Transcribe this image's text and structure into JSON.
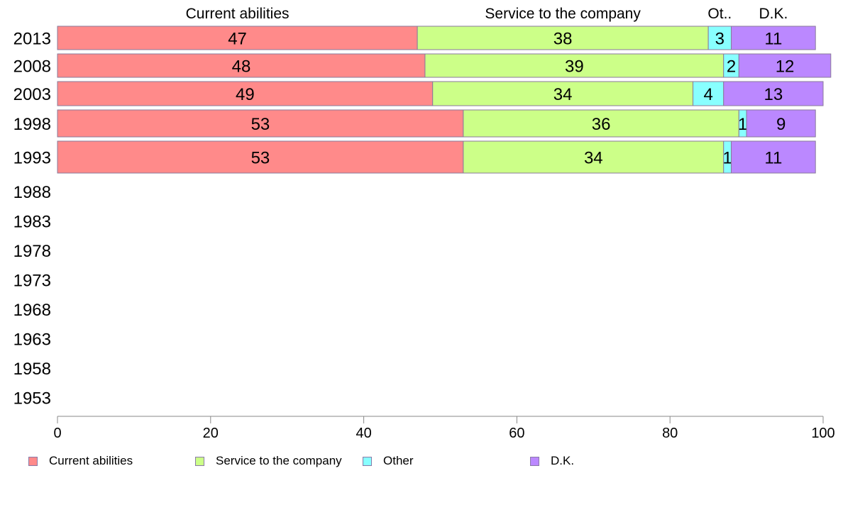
{
  "chart_data": {
    "type": "bar",
    "orientation": "horizontal",
    "stacked": true,
    "categories": [
      "2013",
      "2008",
      "2003",
      "1998",
      "1993",
      "1988",
      "1983",
      "1978",
      "1973",
      "1968",
      "1963",
      "1958",
      "1953"
    ],
    "series": [
      {
        "name": "Current abilities",
        "header": "Current abilities",
        "color": "#ff8a8a",
        "values": [
          47,
          48,
          49,
          53,
          53,
          null,
          null,
          null,
          null,
          null,
          null,
          null,
          null
        ]
      },
      {
        "name": "Service to the company",
        "header": "Service to the company",
        "color": "#ccff88",
        "values": [
          38,
          39,
          34,
          36,
          34,
          null,
          null,
          null,
          null,
          null,
          null,
          null,
          null
        ]
      },
      {
        "name": "Other",
        "header": "Ot..",
        "color": "#88ffff",
        "values": [
          3,
          2,
          4,
          1,
          1,
          null,
          null,
          null,
          null,
          null,
          null,
          null,
          null
        ]
      },
      {
        "name": "D.K.",
        "header": "D.K.",
        "color": "#bb88ff",
        "values": [
          11,
          12,
          13,
          9,
          11,
          null,
          null,
          null,
          null,
          null,
          null,
          null,
          null
        ]
      }
    ],
    "data_labels": [
      [
        "47",
        "38",
        "3",
        "11"
      ],
      [
        "48",
        "39",
        "2",
        "12"
      ],
      [
        "49",
        "34",
        "4",
        "13"
      ],
      [
        "53",
        "36",
        "1",
        "9"
      ],
      [
        "53",
        "34",
        "1",
        "11"
      ]
    ],
    "xlim": [
      0,
      100
    ],
    "xticks": [
      "0",
      "20",
      "40",
      "60",
      "80",
      "100"
    ],
    "title": "",
    "xlabel": "",
    "ylabel": "",
    "grid": false,
    "legend_position": "bottom"
  }
}
